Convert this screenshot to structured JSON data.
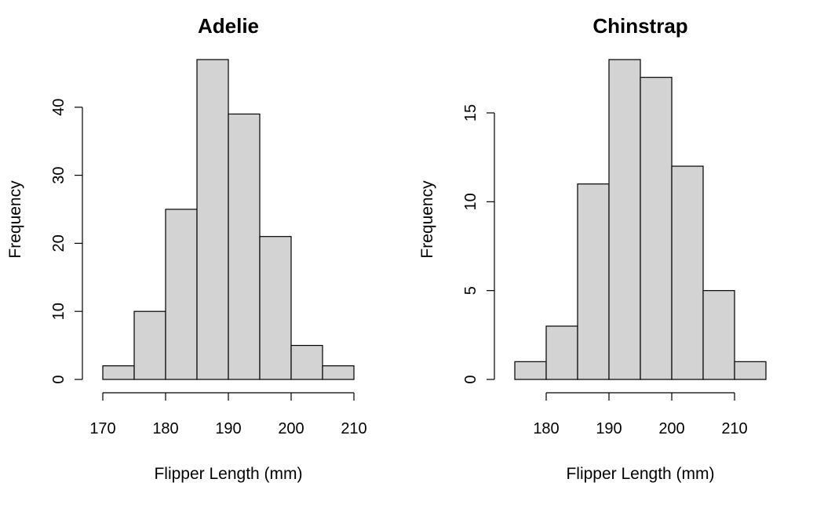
{
  "chart_data": [
    {
      "type": "bar",
      "title": "Adelie",
      "xlabel": "Flipper Length (mm)",
      "ylabel": "Frequency",
      "bin_edges": [
        170,
        175,
        180,
        185,
        190,
        195,
        200,
        205,
        210
      ],
      "values": [
        2,
        10,
        25,
        47,
        39,
        21,
        5,
        2
      ],
      "xlim": [
        170,
        210
      ],
      "ylim": [
        0,
        47
      ],
      "x_ticks": [
        170,
        180,
        190,
        200,
        210
      ],
      "y_ticks": [
        0,
        10,
        20,
        30,
        40
      ],
      "grid": false,
      "bar_color": "#d3d3d3"
    },
    {
      "type": "bar",
      "title": "Chinstrap",
      "xlabel": "Flipper Length (mm)",
      "ylabel": "Frequency",
      "bin_edges": [
        175,
        180,
        185,
        190,
        195,
        200,
        205,
        210,
        215
      ],
      "values": [
        1,
        3,
        11,
        18,
        17,
        12,
        5,
        1
      ],
      "xlim": [
        175,
        215
      ],
      "ylim": [
        0,
        18
      ],
      "x_ticks": [
        180,
        190,
        200,
        210
      ],
      "y_ticks": [
        0,
        5,
        10,
        15
      ],
      "grid": false,
      "bar_color": "#d3d3d3"
    }
  ]
}
